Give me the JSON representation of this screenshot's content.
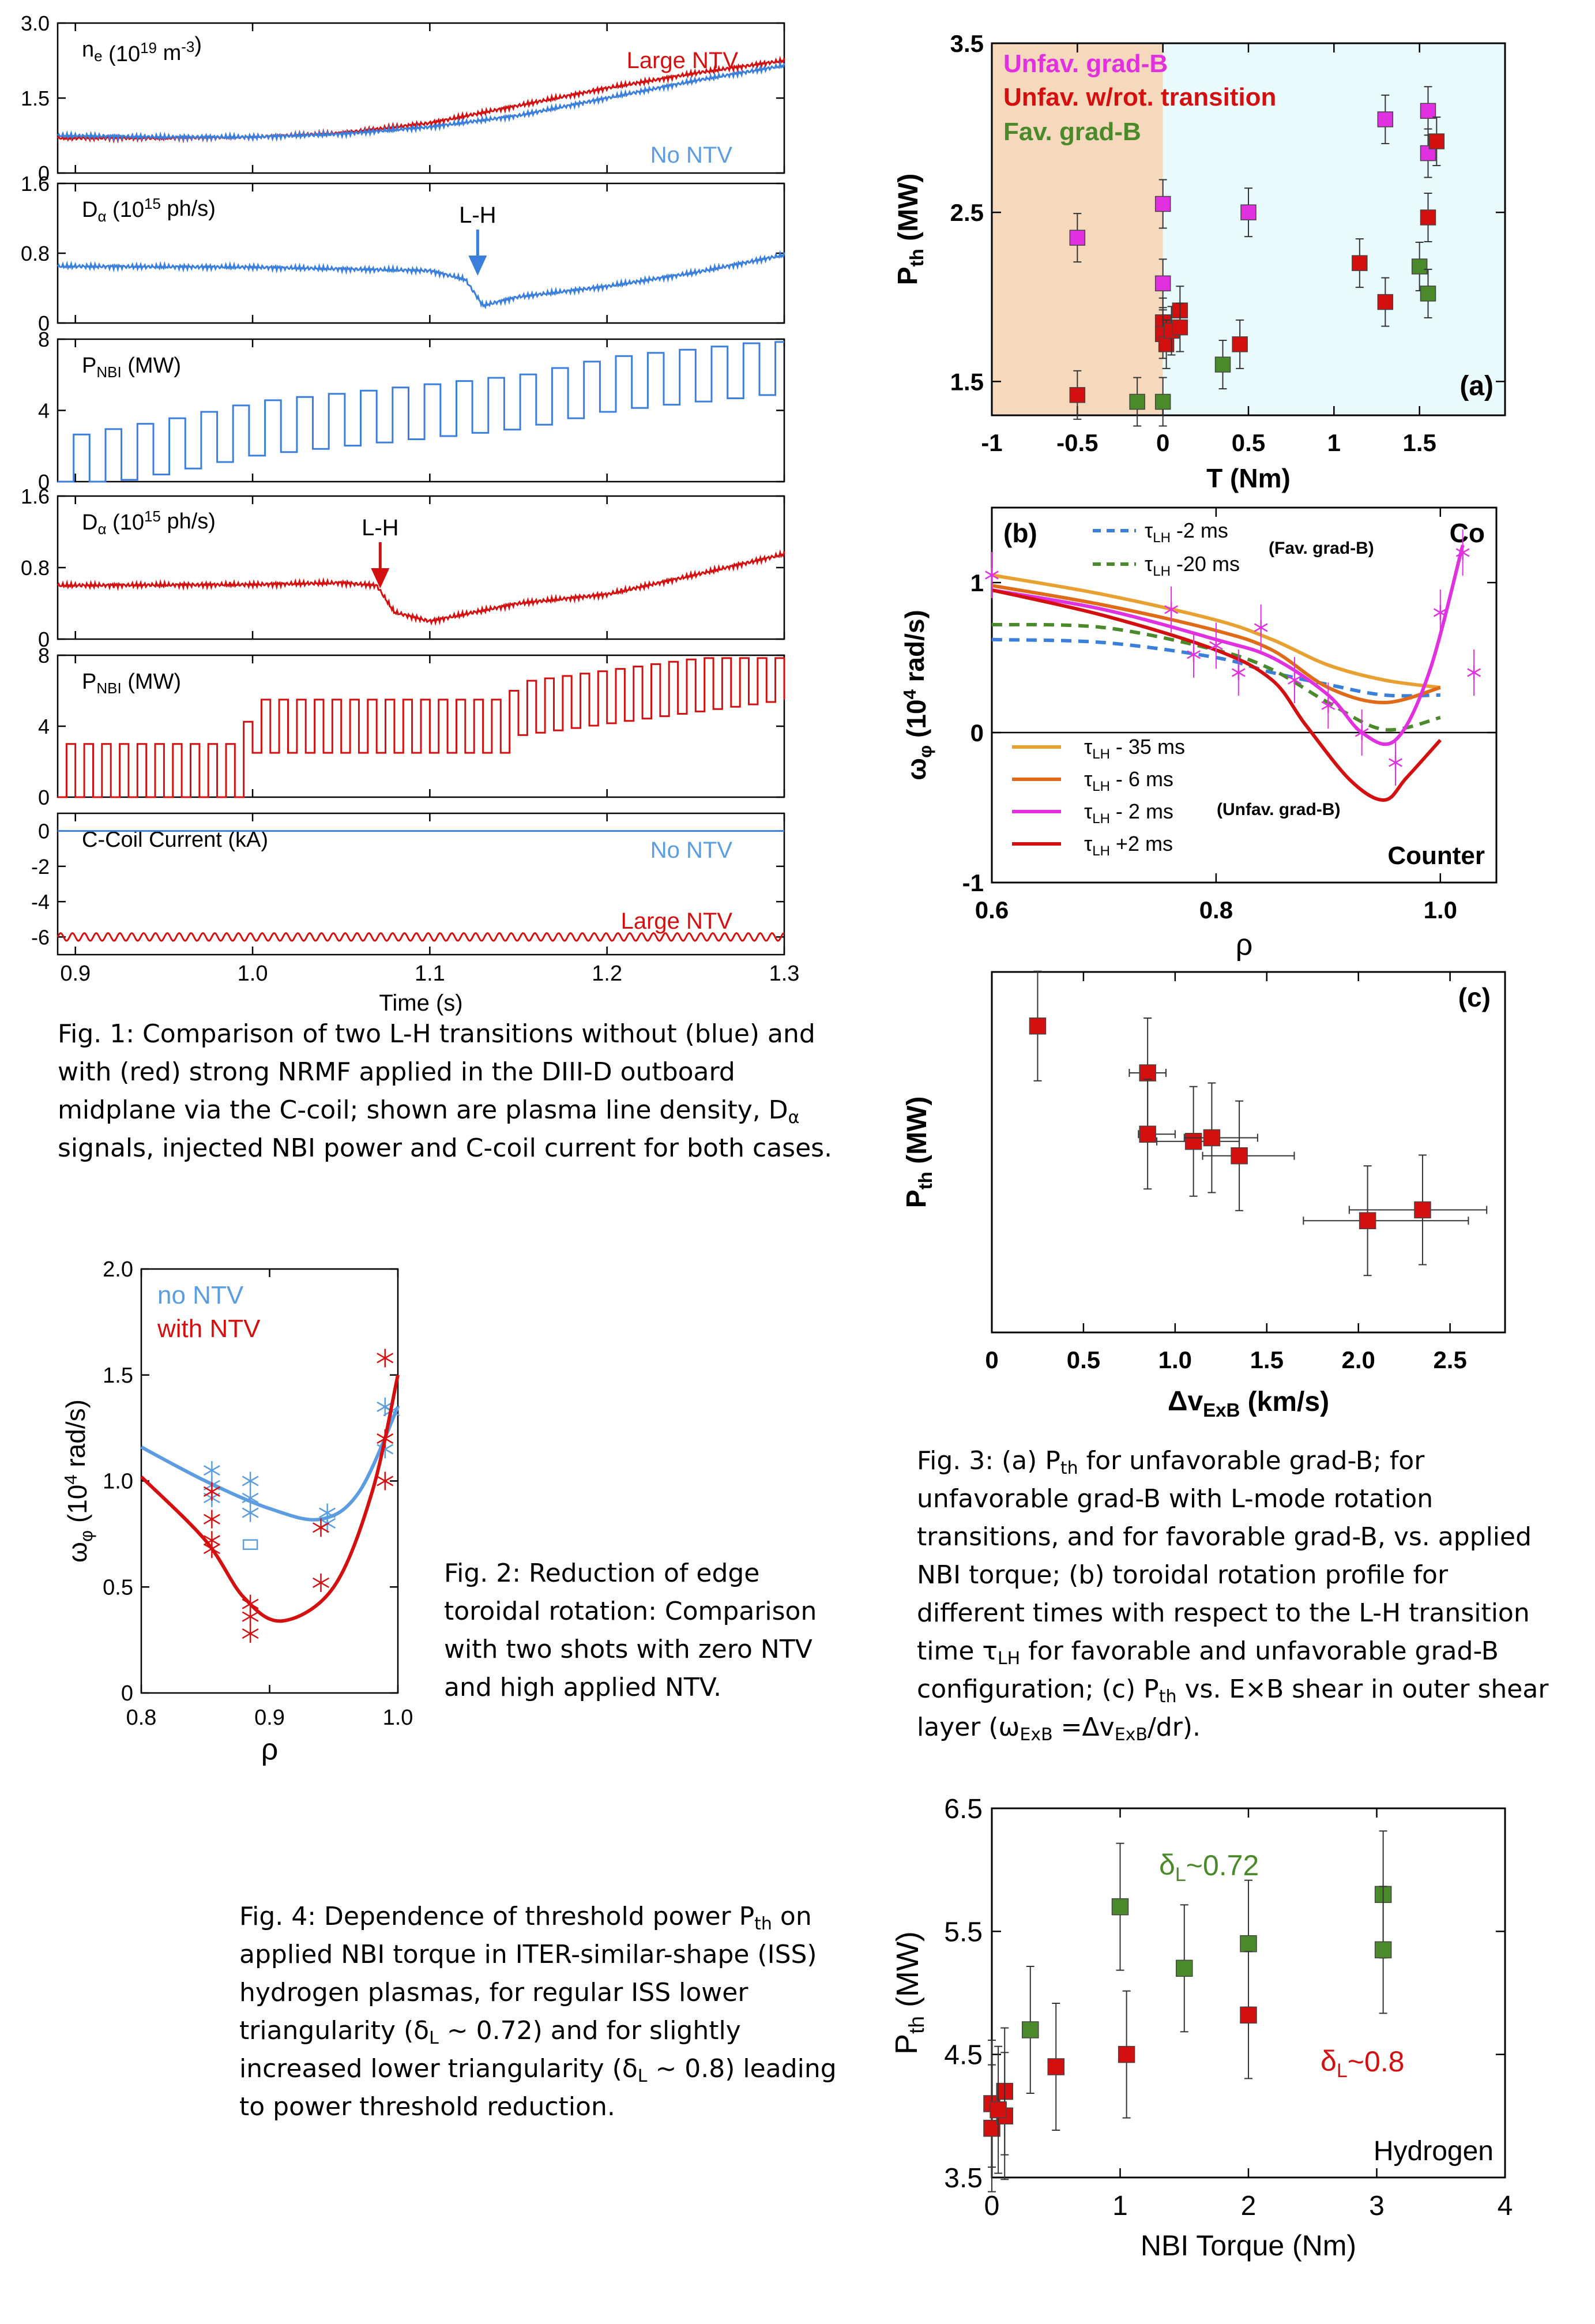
{
  "captions": {
    "fig1": "Fig. 1: Comparison of two L-H transitions without (blue) and with (red) strong NRMF applied in the DIII-D outboard midplane via the C-coil; shown are plasma line density, Dα signals, injected NBI power and C-coil current for both cases.",
    "fig2": "Fig. 2: Reduction of edge toroidal rotation: Comparison with two shots with zero NTV and high applied NTV.",
    "fig3": "Fig. 3: (a) Pth for unfavorable grad-B; for unfavorable grad-B with L-mode rotation transitions, and for favorable grad-B, vs. applied NBI torque; (b) toroidal rotation profile for different times with respect to the L-H transition time τLH for favorable and unfavorable grad-B configuration; (c) Pth vs. E×B shear in outer shear layer (ωExB =ΔvExB/dr).",
    "fig4": "Fig. 4: Dependence of threshold power Pth on applied NBI torque in ITER-similar-shape (ISS) hydrogen plasmas, for regular ISS lower triangularity (δL ~ 0.72) and for slightly increased lower triangularity (δL ~ 0.8) leading to power threshold reduction."
  },
  "colors": {
    "blue": "#3b7fdc",
    "red": "#d40f0f",
    "lightblue": "#5c9ce0",
    "magenta": "#e030e0",
    "green": "#4a8a2a",
    "orange": "#e8a030",
    "darkorange": "#e06a18",
    "peach": "#f6d9bc",
    "lightcyan": "#e8fafc"
  },
  "chart_data": [
    {
      "id": "fig1",
      "type": "line",
      "xlabel": "Time (s)",
      "xlim": [
        0.89,
        1.3
      ],
      "xticks": [
        "0.9",
        "1.0",
        "1.1",
        "1.2",
        "1.3"
      ],
      "panels": [
        {
          "label": "ne (10^19 m-3)",
          "ylim": [
            0,
            3.0
          ],
          "yticks": [
            "3.0",
            "1.5",
            "0"
          ],
          "annotations": [
            "Large NTV",
            "No NTV"
          ],
          "series": [
            {
              "name": "Large NTV",
              "x": [
                0.89,
                0.95,
                1.0,
                1.05,
                1.1,
                1.15,
                1.2,
                1.25,
                1.3
              ],
              "y": [
                0.7,
                0.7,
                0.72,
                0.8,
                1.0,
                1.35,
                1.7,
                2.0,
                2.25
              ]
            },
            {
              "name": "No NTV",
              "x": [
                0.89,
                0.95,
                1.0,
                1.05,
                1.1,
                1.15,
                1.2,
                1.25,
                1.3
              ],
              "y": [
                0.75,
                0.72,
                0.72,
                0.78,
                0.92,
                1.15,
                1.5,
                1.85,
                2.15
              ]
            }
          ]
        },
        {
          "label": "Dα (10^15 ph/s)",
          "ylim": [
            0,
            1.6
          ],
          "yticks": [
            "1.6",
            "0.8",
            "0"
          ],
          "annotation": "L-H",
          "series": [
            {
              "name": "No NTV",
              "x": [
                0.89,
                1.0,
                1.1,
                1.12,
                1.13,
                1.15,
                1.2,
                1.25,
                1.28,
                1.3
              ],
              "y": [
                0.65,
                0.64,
                0.6,
                0.5,
                0.2,
                0.3,
                0.42,
                0.58,
                0.7,
                0.78
              ]
            }
          ]
        },
        {
          "label": "PNBI (MW)",
          "ylim": [
            0,
            8
          ],
          "yticks": [
            "8",
            "4",
            "0"
          ],
          "series": [
            {
              "name": "No NTV",
              "x": [
                0.89,
                0.95,
                1.0,
                1.05,
                1.1,
                1.15,
                1.2,
                1.25,
                1.3
              ],
              "y": [
                1,
                2,
                3,
                3.5,
                4,
                4.5,
                5.5,
                6,
                6.5
              ]
            }
          ]
        },
        {
          "label": "Dα (10^15 ph/s)",
          "ylim": [
            0,
            1.6
          ],
          "yticks": [
            "1.6",
            "0.8",
            "0"
          ],
          "annotation": "L-H",
          "series": [
            {
              "name": "Large NTV",
              "x": [
                0.89,
                1.0,
                1.05,
                1.07,
                1.08,
                1.1,
                1.15,
                1.2,
                1.25,
                1.3
              ],
              "y": [
                0.6,
                0.61,
                0.63,
                0.6,
                0.3,
                0.2,
                0.4,
                0.5,
                0.72,
                0.95
              ]
            }
          ]
        },
        {
          "label": "PNBI (MW)",
          "ylim": [
            0,
            8
          ],
          "yticks": [
            "8",
            "4",
            "0"
          ],
          "series": [
            {
              "name": "Large NTV",
              "x": [
                0.89,
                0.99,
                1.0,
                1.14,
                1.15,
                1.3
              ],
              "y": [
                1.5,
                1.5,
                4,
                4,
                5,
                7
              ]
            }
          ]
        },
        {
          "label": "C-Coil Current (kA)",
          "ylim": [
            -7,
            1
          ],
          "yticks": [
            "0",
            "-2",
            "-4",
            "-6"
          ],
          "annotations": [
            "No NTV",
            "Large NTV"
          ],
          "series": [
            {
              "name": "No NTV",
              "x": [
                0.89,
                1.3
              ],
              "y": [
                0,
                0
              ]
            },
            {
              "name": "Large NTV",
              "x": [
                0.89,
                1.3
              ],
              "y": [
                -6,
                -6
              ]
            }
          ]
        }
      ]
    },
    {
      "id": "fig2",
      "type": "scatter",
      "xlabel": "ρ",
      "ylabel": "ωφ (10⁴ rad/s)",
      "xlim": [
        0.8,
        1.0
      ],
      "ylim": [
        0,
        2.0
      ],
      "xticks": [
        "0.8",
        "0.9",
        "1.0"
      ],
      "yticks": [
        "0",
        "0.5",
        "1.0",
        "1.5",
        "2.0"
      ],
      "legend": [
        "no NTV",
        "with NTV"
      ],
      "series": [
        {
          "name": "no NTV",
          "x": [
            0.855,
            0.855,
            0.855,
            0.885,
            0.885,
            0.885,
            0.945,
            0.945,
            0.99,
            0.99,
            0.995
          ],
          "y": [
            1.05,
            0.98,
            0.92,
            1.0,
            0.92,
            0.85,
            0.85,
            0.8,
            1.35,
            1.15,
            1.33
          ],
          "fit": [
            [
              0.8,
              1.16
            ],
            [
              0.85,
              1.0
            ],
            [
              0.9,
              0.87
            ],
            [
              0.94,
              0.82
            ],
            [
              0.97,
              0.95
            ],
            [
              1.0,
              1.35
            ]
          ]
        },
        {
          "name": "with NTV",
          "x": [
            0.855,
            0.855,
            0.855,
            0.855,
            0.885,
            0.885,
            0.885,
            0.94,
            0.94,
            0.99,
            0.99,
            0.99
          ],
          "y": [
            0.95,
            0.82,
            0.72,
            0.68,
            0.42,
            0.36,
            0.28,
            0.78,
            0.52,
            1.58,
            1.2,
            1.0
          ],
          "fit": [
            [
              0.8,
              1.02
            ],
            [
              0.85,
              0.72
            ],
            [
              0.88,
              0.45
            ],
            [
              0.91,
              0.34
            ],
            [
              0.95,
              0.5
            ],
            [
              0.98,
              0.95
            ],
            [
              1.0,
              1.5
            ]
          ]
        }
      ]
    },
    {
      "id": "fig3a",
      "type": "scatter",
      "xlabel": "T (Nm)",
      "ylabel": "Pth (MW)",
      "panel_label": "(a)",
      "xlim": [
        -1,
        2
      ],
      "ylim": [
        1.3,
        3.5
      ],
      "xticks": [
        "-1",
        "-0.5",
        "0",
        "0.5",
        "1",
        "1.5"
      ],
      "yticks": [
        "1.5",
        "2.5",
        "3.5"
      ],
      "legend": [
        "Unfav. grad-B",
        "Unfav. w/rot. transition",
        "Fav. grad-B"
      ],
      "series": [
        {
          "name": "Unfav. grad-B",
          "x": [
            -0.5,
            0.0,
            0.0,
            0.5,
            1.3,
            1.55,
            1.55
          ],
          "y": [
            2.35,
            2.55,
            2.08,
            2.5,
            3.05,
            2.85,
            3.1
          ]
        },
        {
          "name": "Unfav. w/rot. transition",
          "x": [
            -0.5,
            0.0,
            0.0,
            0.02,
            0.05,
            0.1,
            0.1,
            0.45,
            1.15,
            1.3,
            1.55,
            1.6
          ],
          "y": [
            1.42,
            1.85,
            1.78,
            1.72,
            1.8,
            1.92,
            1.82,
            1.72,
            2.2,
            1.97,
            2.47,
            2.92
          ]
        },
        {
          "name": "Fav. grad-B",
          "x": [
            -0.15,
            0.0,
            0.35,
            1.5,
            1.55
          ],
          "y": [
            1.38,
            1.38,
            1.6,
            2.18,
            2.02
          ]
        }
      ]
    },
    {
      "id": "fig3b",
      "type": "line",
      "xlabel": "ρ",
      "ylabel": "ωφ (10⁴ rad/s)",
      "panel_label": "(b)",
      "xlim": [
        0.6,
        1.05
      ],
      "ylim": [
        -1,
        1.5
      ],
      "xticks": [
        "0.6",
        "0.8",
        "1.0"
      ],
      "yticks": [
        "-1",
        "0",
        "1"
      ],
      "annotations": [
        "Co",
        "Counter",
        "(Fav. grad-B)",
        "(Unfav. grad-B)"
      ],
      "series": [
        {
          "name": "τLH -2 ms",
          "style": "dashed",
          "x": [
            0.6,
            0.7,
            0.8,
            0.85,
            0.9,
            0.95,
            1.0
          ],
          "y": [
            0.62,
            0.6,
            0.5,
            0.4,
            0.32,
            0.25,
            0.25
          ]
        },
        {
          "name": "τLH -20 ms",
          "style": "dashed",
          "x": [
            0.6,
            0.7,
            0.8,
            0.85,
            0.9,
            0.95,
            1.0
          ],
          "y": [
            0.72,
            0.7,
            0.55,
            0.42,
            0.2,
            0.02,
            0.1
          ]
        },
        {
          "name": "τLH - 35 ms",
          "x": [
            0.6,
            0.7,
            0.8,
            0.85,
            0.9,
            0.95,
            1.0
          ],
          "y": [
            1.05,
            0.92,
            0.75,
            0.62,
            0.45,
            0.35,
            0.3
          ]
        },
        {
          "name": "τLH - 6 ms",
          "x": [
            0.6,
            0.7,
            0.8,
            0.85,
            0.9,
            0.95,
            1.0
          ],
          "y": [
            0.98,
            0.85,
            0.68,
            0.55,
            0.3,
            0.2,
            0.3
          ]
        },
        {
          "name": "τLH - 2 ms",
          "x": [
            0.6,
            0.7,
            0.8,
            0.85,
            0.9,
            0.93,
            0.96,
            0.99,
            1.02
          ],
          "y": [
            0.95,
            0.82,
            0.62,
            0.5,
            0.25,
            0.0,
            -0.05,
            0.4,
            1.25
          ]
        },
        {
          "name": "τLH +2 ms",
          "x": [
            0.6,
            0.7,
            0.8,
            0.85,
            0.88,
            0.92,
            0.95,
            0.97,
            1.0
          ],
          "y": [
            0.95,
            0.78,
            0.55,
            0.35,
            0.05,
            -0.32,
            -0.45,
            -0.3,
            -0.05
          ]
        }
      ],
      "points": {
        "x": [
          0.6,
          0.76,
          0.78,
          0.8,
          0.82,
          0.84,
          0.87,
          0.9,
          0.93,
          0.96,
          1.0,
          1.02,
          1.03
        ],
        "y": [
          1.05,
          0.82,
          0.52,
          0.58,
          0.4,
          0.7,
          0.35,
          0.18,
          0.0,
          -0.2,
          0.8,
          1.2,
          0.4
        ]
      }
    },
    {
      "id": "fig3c",
      "type": "scatter",
      "xlabel": "ΔvExB (km/s)",
      "ylabel": "Pth (MW)",
      "panel_label": "(c)",
      "xlim": [
        0,
        2.8
      ],
      "ylim": [
        0,
        1
      ],
      "xticks": [
        "0",
        "0.5",
        "1.0",
        "1.5",
        "2.0",
        "2.5"
      ],
      "series": [
        {
          "name": "Pth",
          "x": [
            0.25,
            0.85,
            0.85,
            1.1,
            1.2,
            1.35,
            2.05,
            2.35
          ],
          "y": [
            0.85,
            0.72,
            0.55,
            0.53,
            0.54,
            0.49,
            0.31,
            0.34
          ]
        }
      ]
    },
    {
      "id": "fig4",
      "type": "scatter",
      "xlabel": "NBI Torque (Nm)",
      "ylabel": "Pth (MW)",
      "xlim": [
        0,
        4
      ],
      "ylim": [
        3.5,
        6.5
      ],
      "xticks": [
        "0",
        "1",
        "2",
        "3",
        "4"
      ],
      "yticks": [
        "3.5",
        "4.5",
        "5.5",
        "6.5"
      ],
      "annotations": [
        "δL~0.72",
        "δL~0.8",
        "Hydrogen"
      ],
      "series": [
        {
          "name": "δL~0.72",
          "x": [
            0.3,
            1.0,
            1.5,
            2.0,
            3.05,
            3.05
          ],
          "y": [
            4.7,
            5.7,
            5.2,
            5.4,
            5.8,
            5.35
          ]
        },
        {
          "name": "δL~0.8",
          "x": [
            0.0,
            0.0,
            0.1,
            0.1,
            0.05,
            0.5,
            1.05,
            2.0
          ],
          "y": [
            4.1,
            3.9,
            4.2,
            4.0,
            4.05,
            4.4,
            4.5,
            4.82
          ]
        }
      ]
    }
  ]
}
